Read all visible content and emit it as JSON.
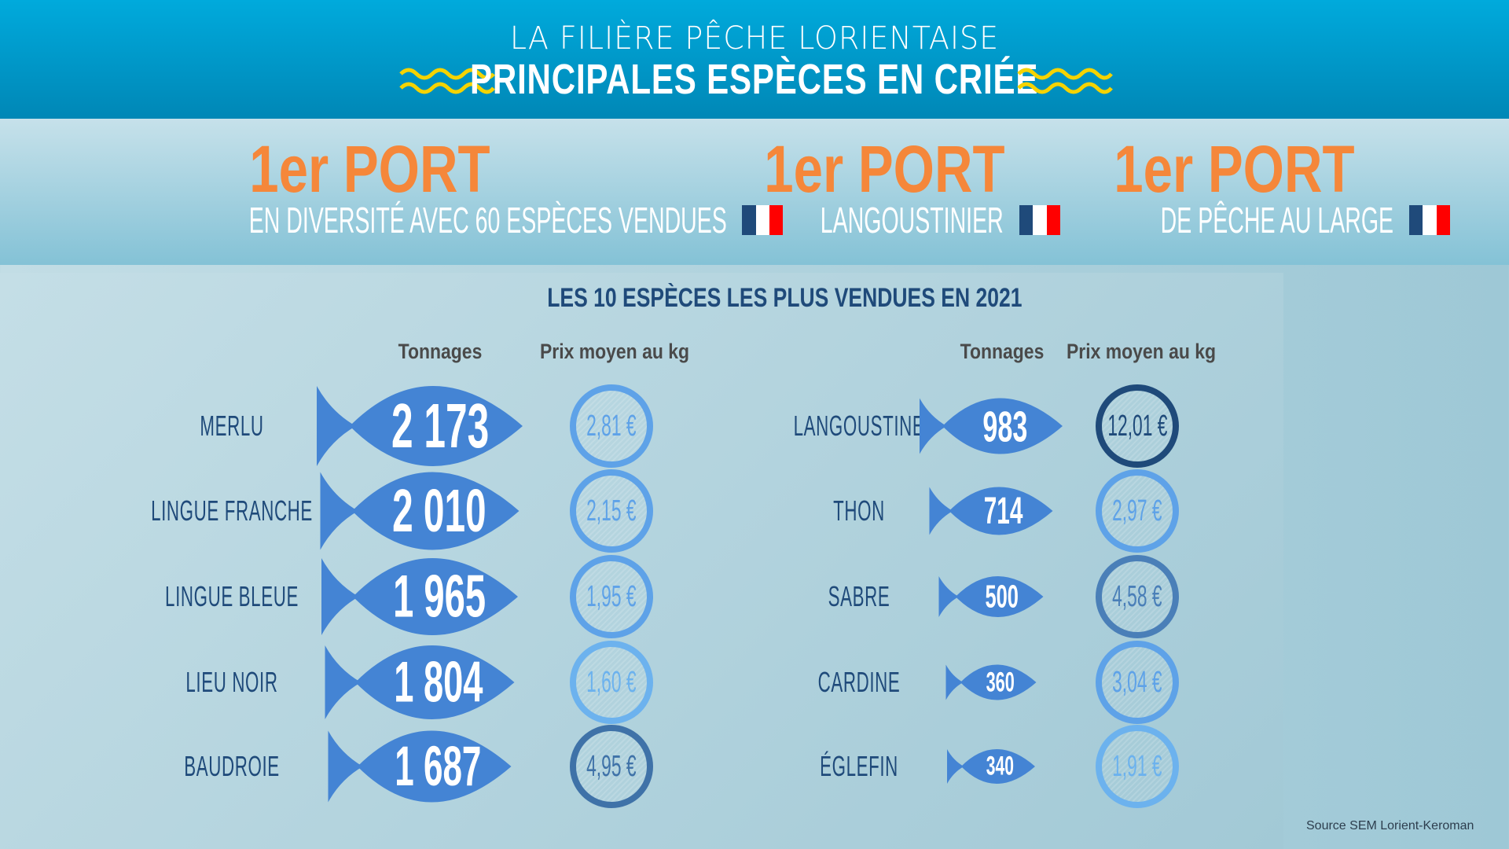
{
  "header": {
    "supertitle": "LA FILIÈRE PÊCHE LORIENTAISE",
    "title": "PRINCIPALES ESPÈCES EN CRIÉE"
  },
  "ports": [
    {
      "headline": "1er PORT",
      "subtitle": "EN DIVERSITÉ AVEC 60 ESPÈCES VENDUES"
    },
    {
      "headline": "1er PORT",
      "subtitle": "LANGOUSTINIER"
    },
    {
      "headline": "1er PORT",
      "subtitle": "DE PÊCHE AU LARGE"
    }
  ],
  "colors": {
    "accent": "#f5873a",
    "navy": "#1f4a7a",
    "fish": "#4484d4",
    "flag_blue": "#1f4a7a",
    "flag_white": "#ffffff",
    "flag_red": "#ff0000"
  },
  "section": {
    "title": "LES 10 ESPÈCES LES PLUS VENDUES EN 2021",
    "col_tonnage": "Tonnages",
    "col_price": "Prix moyen au kg"
  },
  "species": [
    {
      "name": "MERLU",
      "tonnage": "2 173",
      "tons": 2173,
      "price": "2,81 €",
      "ring": "#5ea2e8"
    },
    {
      "name": "LINGUE FRANCHE",
      "tonnage": "2 010",
      "tons": 2010,
      "price": "2,15 €",
      "ring": "#5ea2e8"
    },
    {
      "name": "LINGUE BLEUE",
      "tonnage": "1 965",
      "tons": 1965,
      "price": "1,95 €",
      "ring": "#5ea2e8"
    },
    {
      "name": "LIEU NOIR",
      "tonnage": "1 804",
      "tons": 1804,
      "price": "1,60 €",
      "ring": "#6cb2ee"
    },
    {
      "name": "BAUDROIE",
      "tonnage": "1 687",
      "tons": 1687,
      "price": "4,95 €",
      "ring": "#3f72a8"
    },
    {
      "name": "LANGOUSTINE",
      "tonnage": "983",
      "tons": 983,
      "price": "12,01 €",
      "ring": "#1f4a7a"
    },
    {
      "name": "THON",
      "tonnage": "714",
      "tons": 714,
      "price": "2,97 €",
      "ring": "#5ea2e8"
    },
    {
      "name": "SABRE",
      "tonnage": "500",
      "tons": 500,
      "price": "4,58 €",
      "ring": "#4a7fb8"
    },
    {
      "name": "CARDINE",
      "tonnage": "360",
      "tons": 360,
      "price": "3,04 €",
      "ring": "#5ea2e8"
    },
    {
      "name": "ÉGLEFIN",
      "tonnage": "340",
      "tons": 340,
      "price": "1,91 €",
      "ring": "#6cb2ee"
    }
  ],
  "source": "Source SEM Lorient-Keroman"
}
